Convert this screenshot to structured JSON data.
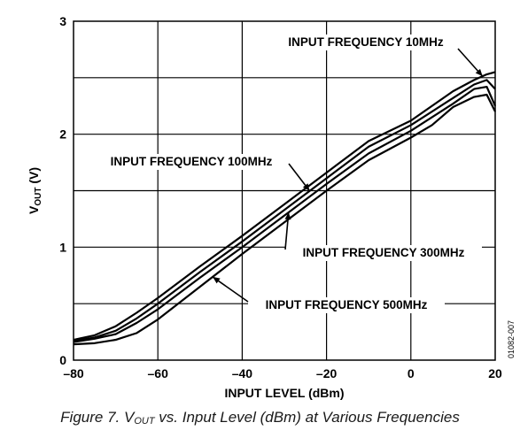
{
  "caption": {
    "prefix": "Figure 7. V",
    "sub": "OUT",
    "suffix": " vs. Input Level (dBm) at Various Frequencies"
  },
  "figure_id": "01082-007",
  "chart_data": {
    "type": "line",
    "xlabel": "INPUT LEVEL (dBm)",
    "ylabel": "V",
    "ylabel_sub": "OUT",
    "ylabel_suffix": " (V)",
    "xlim": [
      -80,
      20
    ],
    "ylim": [
      0,
      3
    ],
    "x_ticks": [
      -80,
      -60,
      -40,
      -20,
      0,
      20
    ],
    "x_tick_labels": [
      "–80",
      "–60",
      "–40",
      "–20",
      "0",
      "20"
    ],
    "y_ticks": [
      0,
      1,
      2,
      3
    ],
    "y_tick_labels": [
      "0",
      "1",
      "2",
      "3"
    ],
    "grid": true,
    "series": [
      {
        "name": "INPUT FREQUENCY 10MHz",
        "x": [
          -80,
          -75,
          -70,
          -65,
          -60,
          -50,
          -40,
          -30,
          -20,
          -10,
          0,
          10,
          15,
          18,
          20
        ],
        "y": [
          0.18,
          0.22,
          0.3,
          0.42,
          0.55,
          0.83,
          1.1,
          1.38,
          1.66,
          1.94,
          2.12,
          2.38,
          2.48,
          2.53,
          2.55
        ]
      },
      {
        "name": "INPUT FREQUENCY 100MHz",
        "x": [
          -80,
          -75,
          -70,
          -65,
          -60,
          -50,
          -40,
          -30,
          -20,
          -10,
          0,
          10,
          15,
          18,
          20
        ],
        "y": [
          0.17,
          0.2,
          0.26,
          0.37,
          0.5,
          0.78,
          1.05,
          1.33,
          1.61,
          1.89,
          2.08,
          2.32,
          2.44,
          2.48,
          2.4
        ]
      },
      {
        "name": "INPUT FREQUENCY 300MHz",
        "x": [
          -80,
          -75,
          -70,
          -65,
          -60,
          -50,
          -40,
          -30,
          -20,
          -10,
          0,
          10,
          15,
          18,
          20
        ],
        "y": [
          0.16,
          0.19,
          0.23,
          0.33,
          0.45,
          0.73,
          1.0,
          1.28,
          1.56,
          1.83,
          2.03,
          2.27,
          2.4,
          2.42,
          2.25
        ]
      },
      {
        "name": "INPUT FREQUENCY 500MHz",
        "x": [
          -80,
          -75,
          -70,
          -65,
          -60,
          -50,
          -40,
          -30,
          -20,
          -10,
          0,
          5,
          10,
          15,
          18,
          20
        ],
        "y": [
          0.14,
          0.15,
          0.18,
          0.24,
          0.36,
          0.65,
          0.94,
          1.22,
          1.5,
          1.77,
          1.97,
          2.08,
          2.24,
          2.33,
          2.35,
          2.2
        ]
      }
    ],
    "labels": [
      {
        "text": "INPUT FREQUENCY 10MHz",
        "series": 0
      },
      {
        "text": "INPUT FREQUENCY 100MHz",
        "series": 1
      },
      {
        "text": "INPUT FREQUENCY 300MHz",
        "series": 2
      },
      {
        "text": "INPUT FREQUENCY 500MHz",
        "series": 3
      }
    ]
  }
}
